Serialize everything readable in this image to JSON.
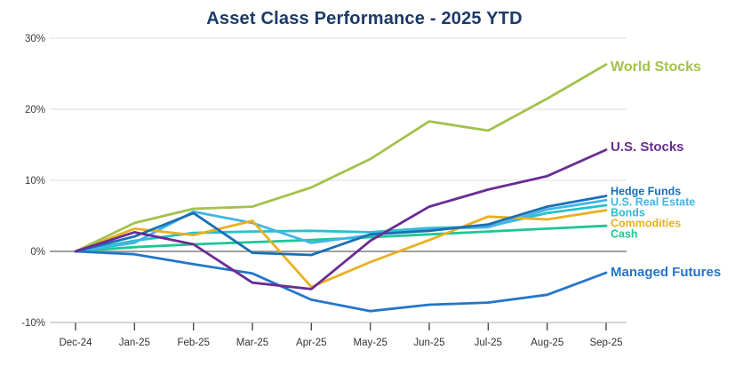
{
  "title": "Asset Class Performance - 2025 YTD",
  "chart_data": {
    "type": "line",
    "x": [
      "Dec-24",
      "Jan-25",
      "Feb-25",
      "Mar-25",
      "Apr-25",
      "May-25",
      "Jun-25",
      "Jul-25",
      "Aug-25",
      "Sep-25"
    ],
    "series": [
      {
        "name": "World Stocks",
        "color": "#a2c24b",
        "values": [
          0,
          4.0,
          6.0,
          6.3,
          9.0,
          13.0,
          18.3,
          17.0,
          21.5,
          26.3
        ]
      },
      {
        "name": "U.S. Stocks",
        "color": "#6a2c93",
        "values": [
          0,
          2.7,
          1.0,
          -4.4,
          -5.3,
          1.5,
          6.3,
          8.7,
          10.6,
          14.3
        ]
      },
      {
        "name": "Hedge Funds",
        "color": "#1a6fb5",
        "values": [
          0,
          2.1,
          5.4,
          -0.2,
          -0.5,
          2.4,
          2.9,
          3.8,
          6.3,
          7.8
        ]
      },
      {
        "name": "U.S. Real Estate",
        "color": "#41b6e6",
        "values": [
          0,
          1.2,
          5.6,
          4.0,
          1.2,
          2.3,
          3.2,
          3.4,
          5.9,
          7.2
        ]
      },
      {
        "name": "Bonds",
        "color": "#28c0cf",
        "values": [
          0,
          1.5,
          2.6,
          2.8,
          2.9,
          2.7,
          3.3,
          3.5,
          5.4,
          6.5
        ]
      },
      {
        "name": "Commodities",
        "color": "#e9b021",
        "values": [
          0,
          3.2,
          2.3,
          4.3,
          -5.0,
          -1.5,
          1.6,
          4.9,
          4.5,
          5.8
        ]
      },
      {
        "name": "Cash",
        "color": "#1ec695",
        "values": [
          0,
          0.6,
          1.0,
          1.3,
          1.6,
          2.0,
          2.4,
          2.8,
          3.2,
          3.6
        ]
      },
      {
        "name": "Managed Futures",
        "color": "#2376ca",
        "values": [
          0,
          -0.4,
          -1.8,
          -3.1,
          -6.8,
          -8.4,
          -7.5,
          -7.2,
          -6.1,
          -3.0
        ]
      }
    ],
    "yticks": [
      30,
      20,
      10,
      0,
      -10
    ],
    "ytick_labels": [
      "30%",
      "20%",
      "10%",
      "0%",
      "-10%"
    ],
    "ylim": [
      -10,
      30
    ],
    "grid": true,
    "legend_position": "right-inline-labels"
  }
}
